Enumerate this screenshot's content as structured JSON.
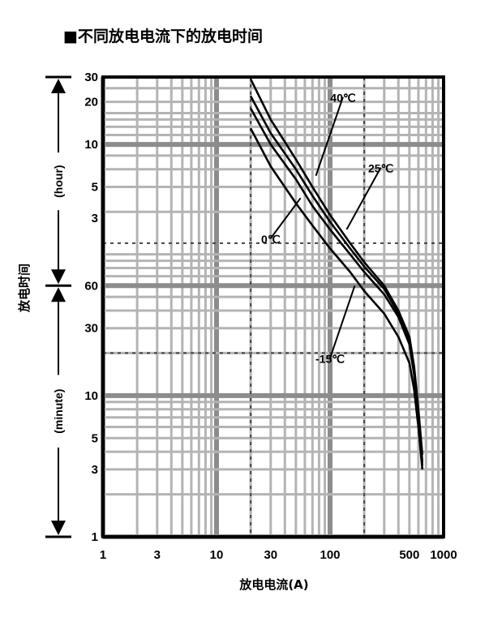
{
  "chart_data": {
    "type": "line",
    "title": "■不同放电电流下的放电时间",
    "xlabel": "放电电流(A)",
    "ylabel": "放电时间",
    "x_scale": "log",
    "y_scale": "log",
    "xlim": [
      1,
      1000
    ],
    "ylim_minutes": [
      1,
      1800
    ],
    "grid": true,
    "x_ticks": [
      {
        "label": "1",
        "value": 1
      },
      {
        "label": "3",
        "value": 3
      },
      {
        "label": "10",
        "value": 10
      },
      {
        "label": "30",
        "value": 30
      },
      {
        "label": "100",
        "value": 100
      },
      {
        "label": "500",
        "value": 500
      },
      {
        "label": "1000",
        "value": 1000
      }
    ],
    "y_ticks": [
      {
        "label": "1",
        "value_minutes": 1
      },
      {
        "label": "3",
        "value_minutes": 3
      },
      {
        "label": "5",
        "value_minutes": 5
      },
      {
        "label": "10",
        "value_minutes": 10
      },
      {
        "label": "30",
        "value_minutes": 30
      },
      {
        "label": "60",
        "value_minutes": 60
      },
      {
        "label": "3",
        "value_minutes": 180
      },
      {
        "label": "5",
        "value_minutes": 300
      },
      {
        "label": "10",
        "value_minutes": 600
      },
      {
        "label": "20",
        "value_minutes": 1200
      },
      {
        "label": "30",
        "value_minutes": 1800
      }
    ],
    "y_unit_labels": [
      {
        "label": "(hour)",
        "range_minutes": [
          60,
          1800
        ]
      },
      {
        "label": "(minute)",
        "range_minutes": [
          1,
          60
        ]
      }
    ],
    "dashed_reference_lines": {
      "x": [
        20,
        200
      ],
      "y_minutes": [
        120,
        20
      ]
    },
    "series": [
      {
        "name": "40℃",
        "x": [
          20,
          30,
          50,
          70,
          100,
          150,
          200,
          300,
          400,
          500,
          550,
          600,
          650
        ],
        "y_minutes": [
          1740,
          900,
          470,
          300,
          190,
          120,
          88,
          60,
          40,
          26,
          16,
          8,
          3.8
        ]
      },
      {
        "name": "25℃",
        "x": [
          20,
          30,
          50,
          70,
          100,
          150,
          200,
          300,
          400,
          500,
          550,
          600,
          650
        ],
        "y_minutes": [
          1320,
          720,
          400,
          260,
          170,
          110,
          82,
          57,
          38,
          25,
          15,
          7.5,
          3.4
        ]
      },
      {
        "name": "0℃",
        "x": [
          20,
          30,
          50,
          70,
          100,
          150,
          200,
          300,
          400,
          500,
          550,
          600,
          650
        ],
        "y_minutes": [
          1080,
          600,
          340,
          220,
          150,
          100,
          75,
          52,
          36,
          23,
          14,
          7,
          3.2
        ]
      },
      {
        "name": "-15℃",
        "x": [
          20,
          30,
          50,
          70,
          100,
          150,
          200,
          300,
          400,
          500,
          550,
          600,
          650
        ],
        "y_minutes": [
          780,
          420,
          230,
          160,
          110,
          75,
          55,
          38,
          26,
          17,
          11,
          6,
          3
        ]
      }
    ],
    "series_labels": [
      {
        "series": "40℃",
        "text_at": [
          130,
          1200
        ],
        "pointer_to": [
          75,
          360
        ]
      },
      {
        "series": "25℃",
        "text_at": [
          280,
          380
        ],
        "pointer_to": [
          140,
          150
        ]
      },
      {
        "series": "0℃",
        "text_at": [
          30,
          120
        ],
        "pointer_to": [
          55,
          250
        ]
      },
      {
        "series": "-15℃",
        "text_at": [
          100,
          17
        ],
        "pointer_to": [
          165,
          60
        ]
      }
    ]
  }
}
